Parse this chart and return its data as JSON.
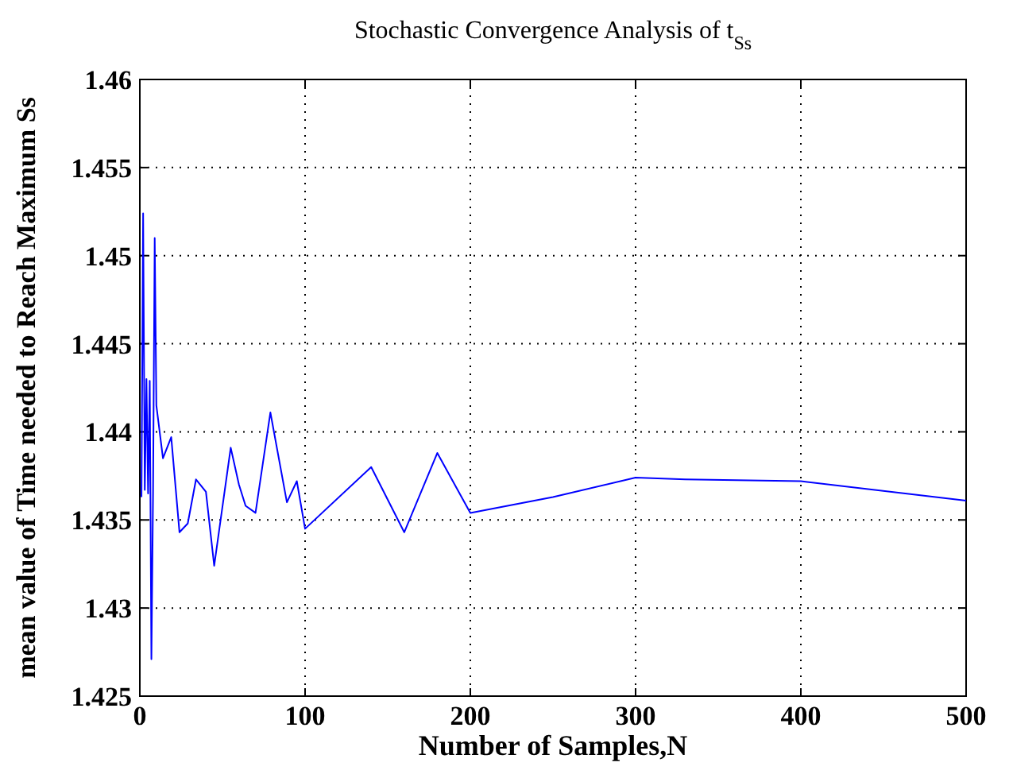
{
  "chart_data": {
    "type": "line",
    "title": "Stochastic Convergence Analysis of t$_{Ss}$",
    "xlabel": "Number of Samples,N",
    "ylabel": "mean value of Time needed to Reach Maximum Ss",
    "series": [
      {
        "color": "#0000ff",
        "x": [
          1,
          2,
          3,
          4,
          5,
          6,
          7,
          8,
          9,
          10,
          14,
          19,
          24,
          29,
          34,
          40,
          45,
          55,
          60,
          64,
          70,
          79,
          89,
          95,
          100,
          140,
          160,
          180,
          200,
          250,
          300,
          330,
          400,
          500
        ],
        "values": [
          1.4363,
          1.4524,
          1.4367,
          1.443,
          1.4365,
          1.4429,
          1.4271,
          1.4365,
          1.451,
          1.4415,
          1.4385,
          1.4397,
          1.4343,
          1.4348,
          1.4373,
          1.4366,
          1.4324,
          1.4391,
          1.437,
          1.4358,
          1.4354,
          1.4411,
          1.436,
          1.4372,
          1.4345,
          1.438,
          1.4343,
          1.4388,
          1.4354,
          1.4363,
          1.4374,
          1.4373,
          1.4372,
          1.4361
        ]
      }
    ],
    "xlim": [
      0,
      500
    ],
    "xticks": [
      0,
      100,
      200,
      300,
      400,
      500
    ],
    "ylim": [
      1.425,
      1.46
    ],
    "yticks": [
      {
        "value": 1.425,
        "label": "1.425"
      },
      {
        "value": 1.43,
        "label": "1.43"
      },
      {
        "value": 1.435,
        "label": "1.435"
      },
      {
        "value": 1.44,
        "label": "1.44"
      },
      {
        "value": 1.445,
        "label": "1.445"
      },
      {
        "value": 1.45,
        "label": "1.45"
      },
      {
        "value": 1.455,
        "label": "1.455"
      },
      {
        "value": 1.46,
        "label": "1.46"
      }
    ],
    "grid": true,
    "line_style": "solid",
    "marker": "none"
  }
}
